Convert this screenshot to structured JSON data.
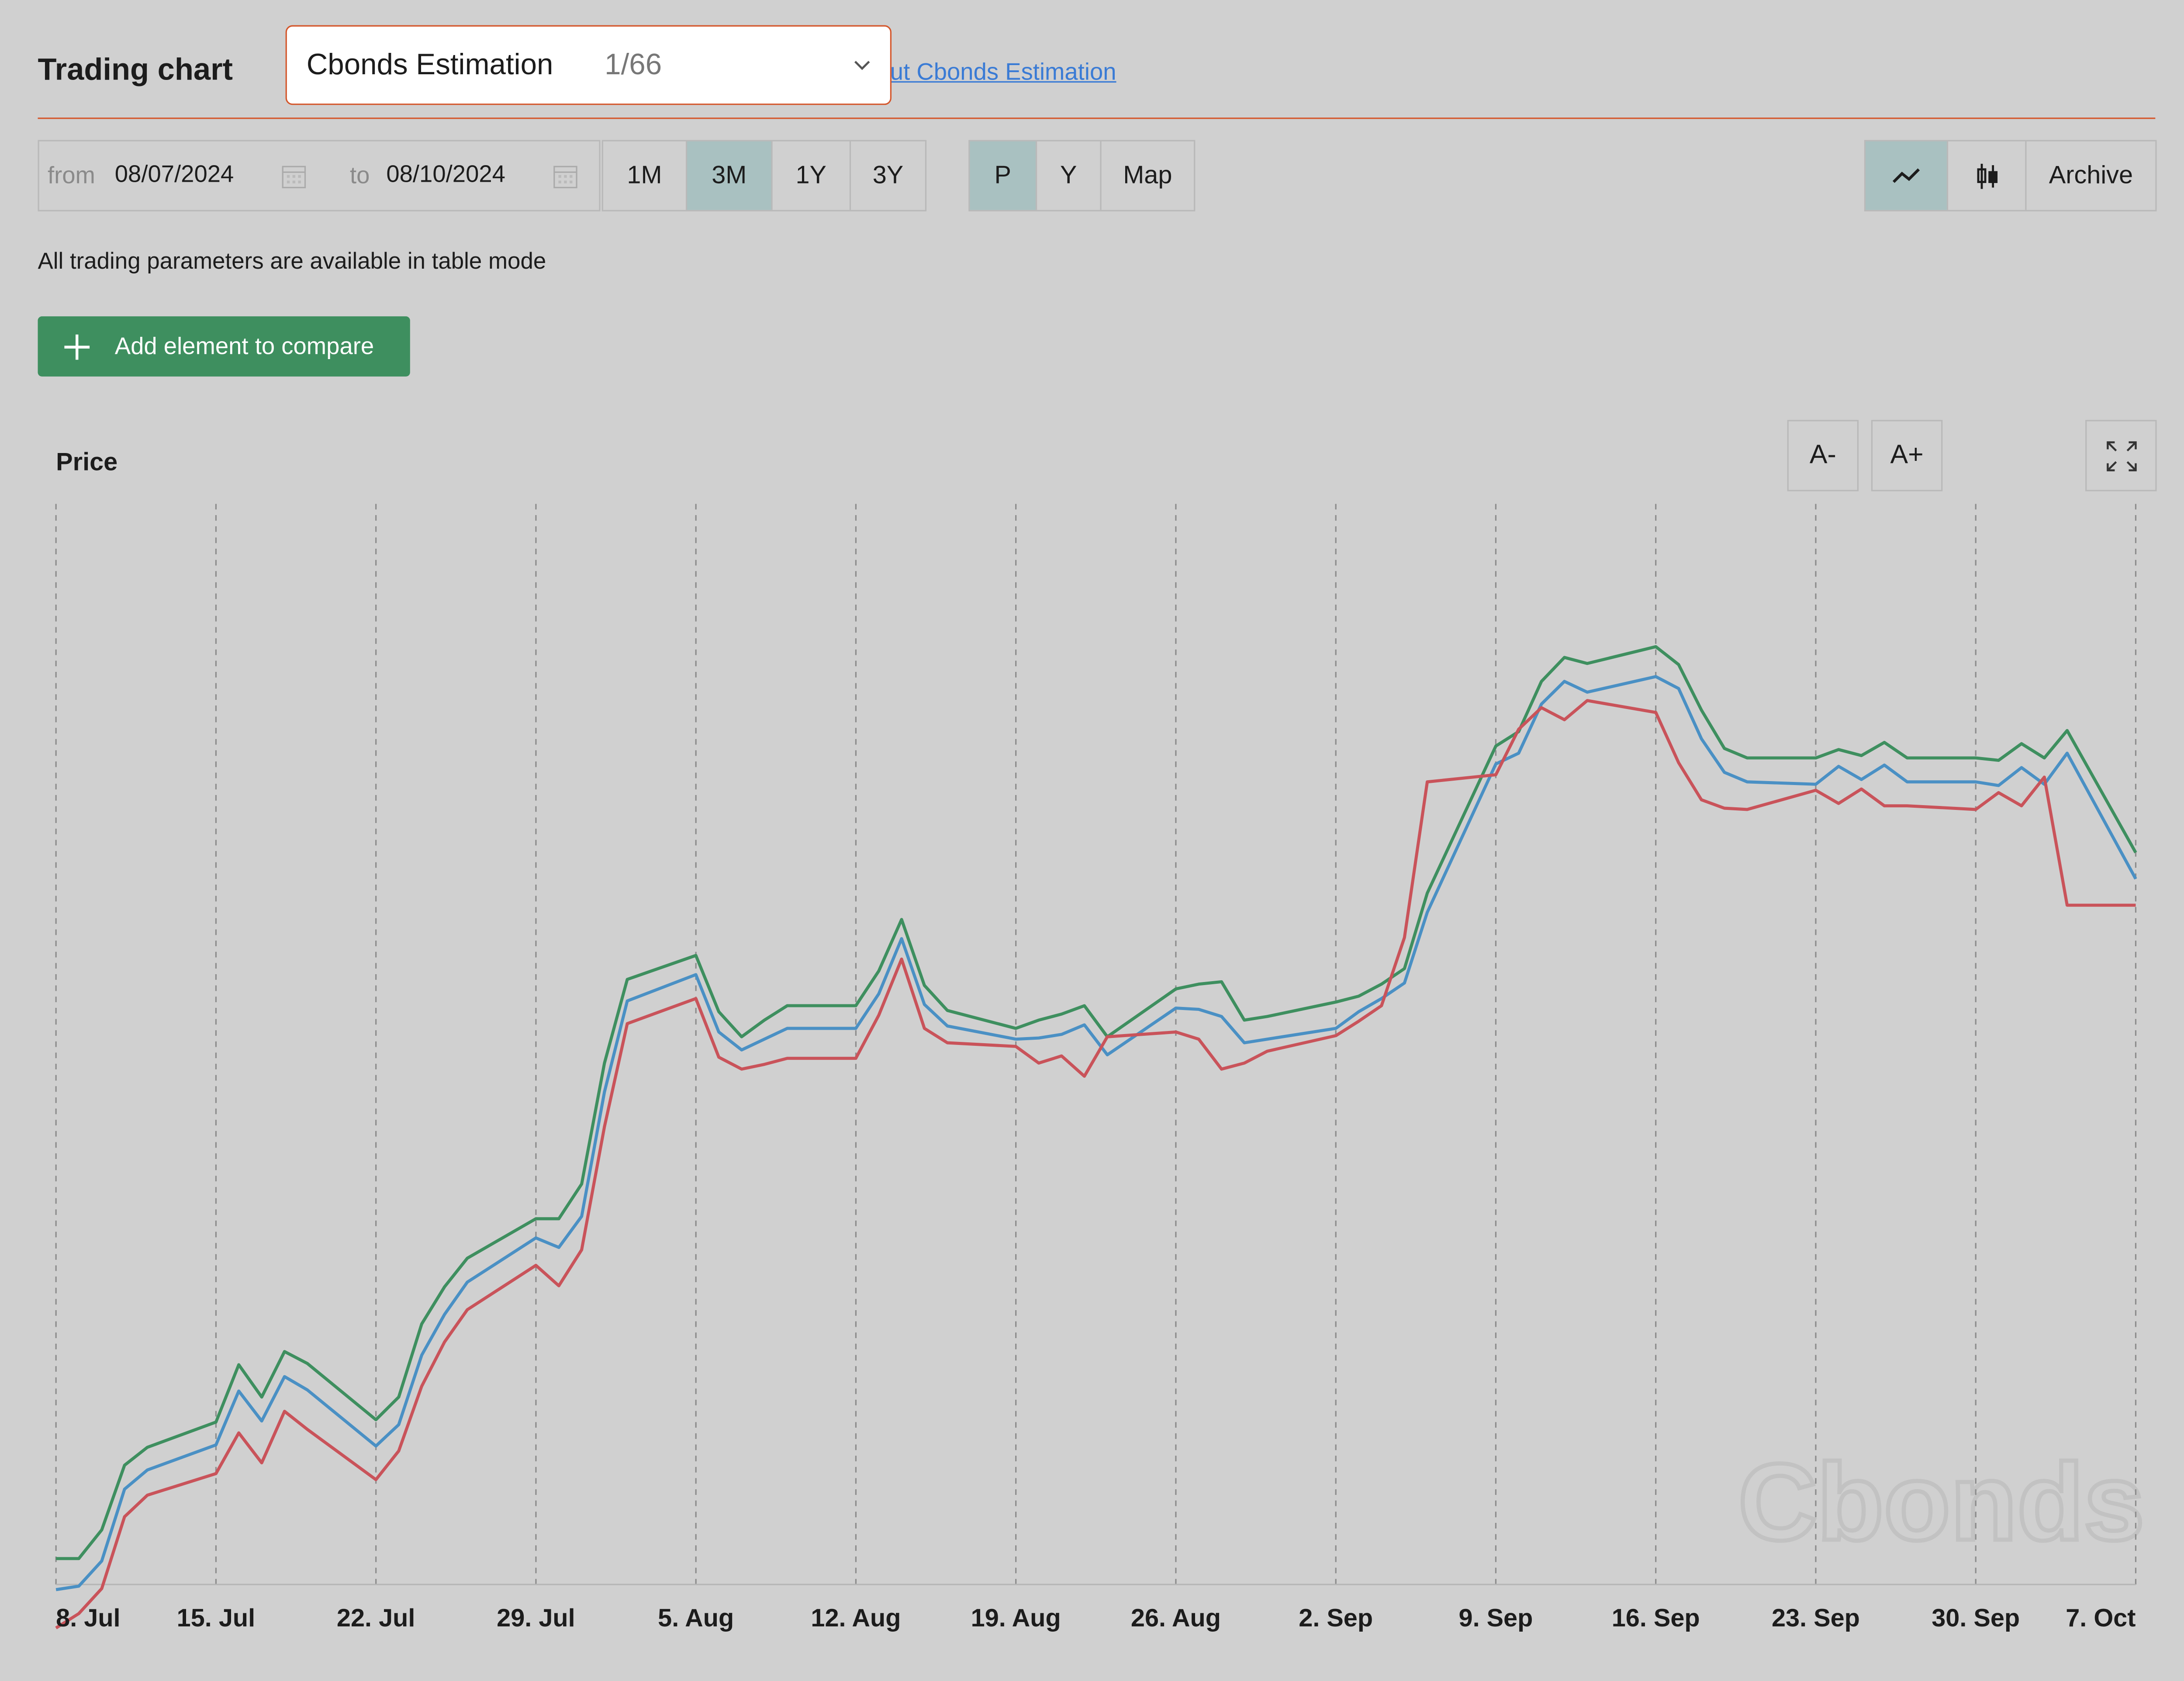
{
  "header": {
    "title": "Trading chart",
    "select": {
      "value": "Cbonds Estimation",
      "count": "1/66"
    },
    "about_link": "ut Cbonds Estimation"
  },
  "toolbar": {
    "from_label": "from",
    "from_value": "08/07/2024",
    "to_label": "to",
    "to_value": "08/10/2024",
    "periods": [
      {
        "label": "1M",
        "active": false
      },
      {
        "label": "3M",
        "active": true
      },
      {
        "label": "1Y",
        "active": false
      },
      {
        "label": "3Y",
        "active": false
      }
    ],
    "modes": [
      {
        "label": "P",
        "active": true
      },
      {
        "label": "Y",
        "active": false
      },
      {
        "label": "Map",
        "active": false
      }
    ],
    "view": {
      "line_icon": "line-chart-icon",
      "candle_icon": "candlestick-icon",
      "archive_label": "Archive",
      "line_active": true
    }
  },
  "note": "All trading parameters are available in table mode",
  "add_button_label": "Add element to compare",
  "chart_controls": {
    "font_minus": "A-",
    "font_plus": "A+",
    "fullscreen_icon": "fullscreen-icon"
  },
  "chart_data": {
    "type": "line",
    "title": "",
    "ylabel": "Price",
    "xlabel": "",
    "grid": "vertical dashed",
    "watermark": "Cbonds",
    "x_ticks": [
      "8. Jul",
      "15. Jul",
      "22. Jul",
      "29. Jul",
      "5. Aug",
      "12. Aug",
      "19. Aug",
      "26. Aug",
      "2. Sep",
      "9. Sep",
      "16. Sep",
      "23. Sep",
      "30. Sep",
      "7. Oct"
    ],
    "x": [
      "2024-07-08",
      "2024-07-09",
      "2024-07-10",
      "2024-07-11",
      "2024-07-12",
      "2024-07-15",
      "2024-07-16",
      "2024-07-17",
      "2024-07-18",
      "2024-07-19",
      "2024-07-22",
      "2024-07-23",
      "2024-07-24",
      "2024-07-25",
      "2024-07-26",
      "2024-07-29",
      "2024-07-30",
      "2024-07-31",
      "2024-08-01",
      "2024-08-02",
      "2024-08-05",
      "2024-08-06",
      "2024-08-07",
      "2024-08-08",
      "2024-08-09",
      "2024-08-12",
      "2024-08-13",
      "2024-08-14",
      "2024-08-15",
      "2024-08-16",
      "2024-08-19",
      "2024-08-20",
      "2024-08-21",
      "2024-08-22",
      "2024-08-23",
      "2024-08-26",
      "2024-08-27",
      "2024-08-28",
      "2024-08-29",
      "2024-08-30",
      "2024-09-02",
      "2024-09-03",
      "2024-09-04",
      "2024-09-05",
      "2024-09-06",
      "2024-09-09",
      "2024-09-10",
      "2024-09-11",
      "2024-09-12",
      "2024-09-13",
      "2024-09-16",
      "2024-09-17",
      "2024-09-18",
      "2024-09-19",
      "2024-09-20",
      "2024-09-23",
      "2024-09-24",
      "2024-09-25",
      "2024-09-26",
      "2024-09-27",
      "2024-09-30",
      "2024-10-01",
      "2024-10-02",
      "2024-10-03",
      "2024-10-04",
      "2024-10-07"
    ],
    "ylim": [
      0,
      100
    ],
    "series": [
      {
        "color": "#3e8f5f",
        "values": [
          17.8,
          17.8,
          20.2,
          25.6,
          27.1,
          29.2,
          34.0,
          31.3,
          35.1,
          34.1,
          29.4,
          31.3,
          37.4,
          40.5,
          42.9,
          46.2,
          46.2,
          49.1,
          59.2,
          66.2,
          68.2,
          63.5,
          61.4,
          62.8,
          64.0,
          64.0,
          66.9,
          71.2,
          65.7,
          63.6,
          62.1,
          62.8,
          63.3,
          64.0,
          61.4,
          65.4,
          65.8,
          66.0,
          62.8,
          63.1,
          64.3,
          64.8,
          65.8,
          67.1,
          73.4,
          85.7,
          86.9,
          91.1,
          93.1,
          92.6,
          94.0,
          92.5,
          88.7,
          85.5,
          84.7,
          84.7,
          85.4,
          84.9,
          86.0,
          84.7,
          84.7,
          84.5,
          85.9,
          84.7,
          87.0,
          76.8
        ]
      },
      {
        "color": "#4a90c4",
        "values": [
          15.2,
          15.5,
          17.6,
          23.6,
          25.2,
          27.3,
          31.8,
          29.3,
          33.0,
          31.9,
          27.2,
          29.0,
          34.8,
          38.2,
          40.9,
          44.6,
          43.8,
          46.4,
          56.8,
          64.4,
          66.6,
          61.8,
          60.3,
          61.2,
          62.1,
          62.1,
          65.0,
          69.6,
          64.1,
          62.3,
          61.2,
          61.3,
          61.6,
          62.4,
          59.9,
          63.8,
          63.7,
          63.1,
          60.9,
          61.2,
          62.1,
          63.5,
          64.6,
          65.9,
          71.8,
          84.2,
          85.1,
          89.2,
          91.1,
          90.2,
          91.5,
          90.5,
          86.3,
          83.5,
          82.7,
          82.5,
          84.0,
          82.9,
          84.1,
          82.7,
          82.7,
          82.4,
          83.9,
          82.5,
          85.1,
          74.6
        ]
      },
      {
        "color": "#c9535a",
        "values": [
          12.0,
          13.2,
          15.3,
          21.3,
          23.1,
          24.9,
          28.3,
          25.8,
          30.1,
          28.6,
          24.4,
          26.8,
          32.2,
          35.9,
          38.6,
          42.3,
          40.6,
          43.6,
          53.9,
          62.5,
          64.6,
          59.7,
          58.7,
          59.1,
          59.6,
          59.6,
          63.2,
          67.9,
          62.1,
          60.9,
          60.6,
          59.2,
          59.8,
          58.1,
          61.4,
          61.8,
          61.2,
          58.7,
          59.2,
          60.2,
          61.5,
          62.7,
          64.0,
          69.7,
          82.7,
          83.3,
          87.1,
          88.9,
          87.9,
          89.5,
          88.5,
          84.3,
          81.2,
          80.5,
          80.4,
          82.0,
          80.9,
          82.1,
          80.7,
          80.7,
          80.4,
          81.8,
          80.7,
          83.1,
          72.4,
          72.4
        ]
      }
    ]
  }
}
